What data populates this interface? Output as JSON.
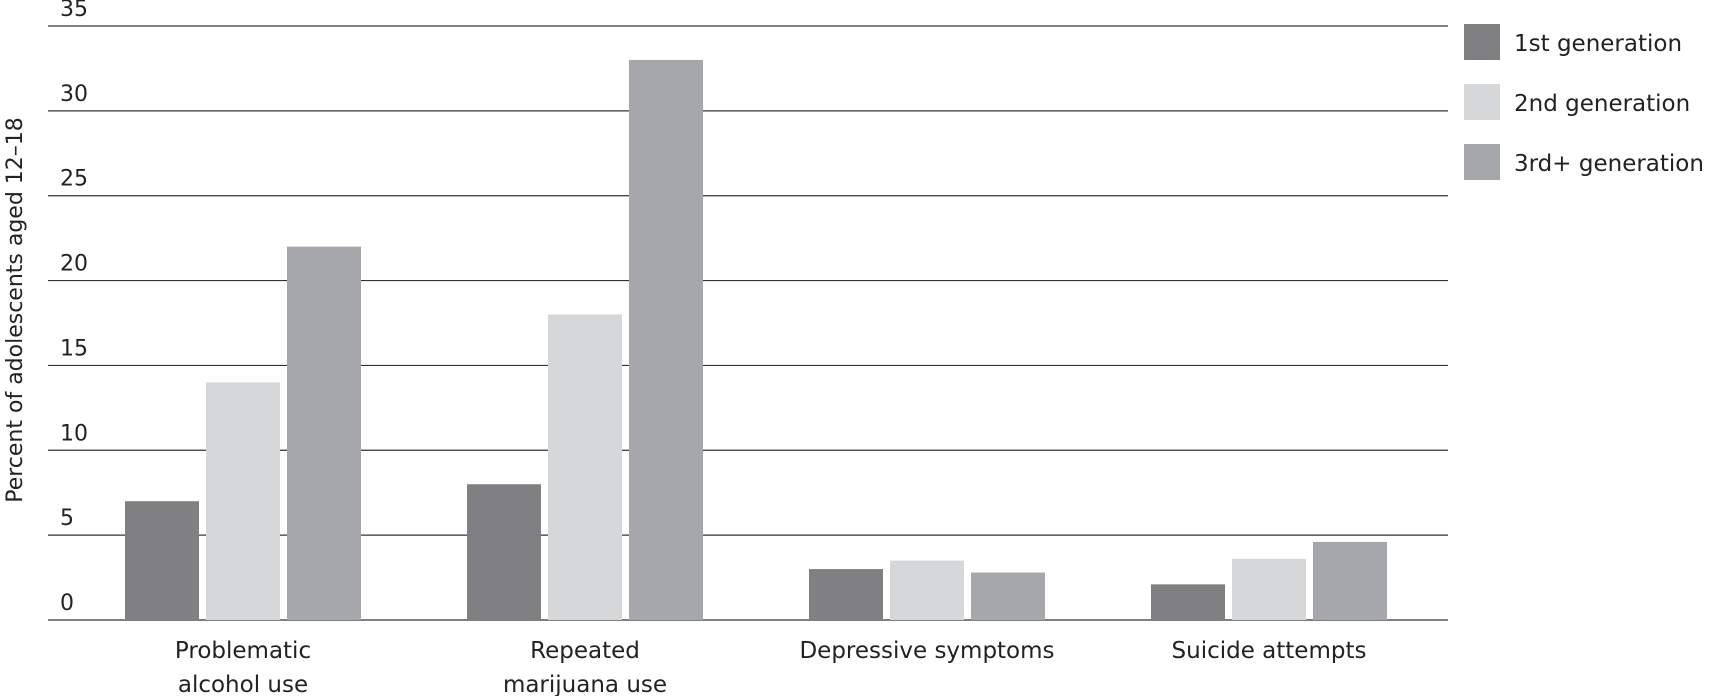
{
  "chart_data": {
    "type": "bar",
    "title": "",
    "xlabel": "",
    "ylabel": "Percent of adolescents aged 12–18",
    "ylim": [
      0,
      35
    ],
    "yticks": [
      0,
      5,
      10,
      15,
      20,
      25,
      30,
      35
    ],
    "grid": true,
    "legend_position": "right",
    "categories": [
      [
        "Problematic",
        "alcohol use"
      ],
      [
        "Repeated",
        "marijuana use"
      ],
      [
        "Depressive symptoms"
      ],
      [
        "Suicide attempts"
      ]
    ],
    "series": [
      {
        "name": "1st generation",
        "color": "#808083",
        "values": [
          7,
          8,
          3,
          2.1
        ]
      },
      {
        "name": "2nd generation",
        "color": "#d6d7d9",
        "values": [
          14,
          18,
          3.5,
          3.6
        ]
      },
      {
        "name": "3rd+ generation",
        "color": "#a6a7aa",
        "values": [
          22,
          33,
          2.8,
          4.6
        ]
      }
    ]
  }
}
